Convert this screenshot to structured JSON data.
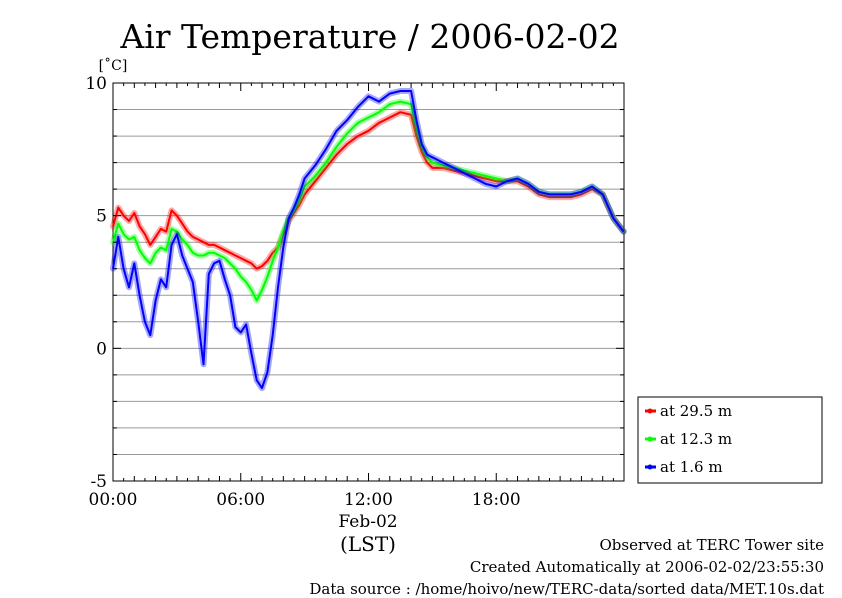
{
  "chart_data": {
    "type": "line",
    "title": "Air Temperature / 2006-02-02",
    "ylabel": "[˚C]",
    "xlabel": "(LST)",
    "x_date_label": "Feb-02",
    "xlim": [
      "00:00",
      "23:59"
    ],
    "ylim": [
      -5,
      10
    ],
    "x_ticks": [
      "00:00",
      "06:00",
      "12:00",
      "18:00"
    ],
    "y_ticks": [
      -5,
      0,
      5,
      10
    ],
    "grid": true,
    "legend_position": "right-bottom",
    "x": [
      "00:00",
      "00:15",
      "00:30",
      "00:45",
      "01:00",
      "01:15",
      "01:30",
      "01:45",
      "02:00",
      "02:15",
      "02:30",
      "02:45",
      "03:00",
      "03:15",
      "03:30",
      "03:45",
      "04:00",
      "04:15",
      "04:30",
      "04:45",
      "05:00",
      "05:15",
      "05:30",
      "05:45",
      "06:00",
      "06:15",
      "06:30",
      "06:45",
      "07:00",
      "07:15",
      "07:30",
      "07:45",
      "08:00",
      "08:15",
      "08:30",
      "08:45",
      "09:00",
      "09:30",
      "10:00",
      "10:30",
      "11:00",
      "11:30",
      "12:00",
      "12:30",
      "13:00",
      "13:30",
      "14:00",
      "14:15",
      "14:30",
      "14:45",
      "15:00",
      "15:30",
      "16:00",
      "16:30",
      "17:00",
      "17:30",
      "18:00",
      "18:30",
      "19:00",
      "19:30",
      "20:00",
      "20:30",
      "21:00",
      "21:30",
      "22:00",
      "22:30",
      "23:00",
      "23:30",
      "23:59"
    ],
    "series": [
      {
        "name": "at 29.5 m",
        "color": "#ff0000",
        "values": [
          4.6,
          5.3,
          5.0,
          4.8,
          5.1,
          4.6,
          4.3,
          3.9,
          4.2,
          4.5,
          4.4,
          5.2,
          5.0,
          4.7,
          4.4,
          4.2,
          4.1,
          4.0,
          3.9,
          3.9,
          3.8,
          3.7,
          3.6,
          3.5,
          3.4,
          3.3,
          3.2,
          3.0,
          3.1,
          3.3,
          3.6,
          3.8,
          4.3,
          4.8,
          5.1,
          5.4,
          5.8,
          6.3,
          6.8,
          7.3,
          7.7,
          8.0,
          8.2,
          8.5,
          8.7,
          8.9,
          8.8,
          8.0,
          7.4,
          7.0,
          6.8,
          6.8,
          6.7,
          6.6,
          6.5,
          6.4,
          6.3,
          6.3,
          6.3,
          6.1,
          5.8,
          5.7,
          5.7,
          5.7,
          5.8,
          6.0,
          5.8,
          4.9,
          4.4
        ]
      },
      {
        "name": "at 12.3 m",
        "color": "#00ff00",
        "values": [
          4.0,
          4.7,
          4.3,
          4.1,
          4.2,
          3.7,
          3.4,
          3.2,
          3.6,
          3.8,
          3.7,
          4.5,
          4.4,
          4.1,
          3.9,
          3.6,
          3.5,
          3.5,
          3.6,
          3.6,
          3.5,
          3.4,
          3.2,
          3.0,
          2.7,
          2.5,
          2.2,
          1.8,
          2.2,
          2.7,
          3.3,
          3.8,
          4.4,
          4.9,
          5.2,
          5.6,
          6.1,
          6.5,
          7.0,
          7.6,
          8.1,
          8.5,
          8.7,
          8.9,
          9.2,
          9.3,
          9.2,
          8.3,
          7.6,
          7.2,
          7.0,
          6.9,
          6.8,
          6.7,
          6.6,
          6.5,
          6.4,
          6.3,
          6.4,
          6.2,
          5.9,
          5.8,
          5.8,
          5.8,
          5.9,
          6.1,
          5.8,
          4.9,
          4.4
        ]
      },
      {
        "name": "at 1.6 m",
        "color": "#0000ff",
        "values": [
          3.0,
          4.2,
          3.0,
          2.3,
          3.2,
          2.0,
          1.0,
          0.5,
          1.8,
          2.6,
          2.3,
          3.9,
          4.3,
          3.5,
          3.0,
          2.5,
          1.0,
          -0.6,
          2.8,
          3.2,
          3.3,
          2.6,
          2.0,
          0.8,
          0.6,
          0.9,
          -0.2,
          -1.2,
          -1.5,
          -0.9,
          0.5,
          2.3,
          3.8,
          4.9,
          5.3,
          5.8,
          6.4,
          6.9,
          7.5,
          8.2,
          8.6,
          9.1,
          9.5,
          9.3,
          9.6,
          9.7,
          9.7,
          8.6,
          7.7,
          7.3,
          7.2,
          7.0,
          6.8,
          6.6,
          6.4,
          6.2,
          6.1,
          6.3,
          6.4,
          6.2,
          5.9,
          5.8,
          5.8,
          5.8,
          5.9,
          6.1,
          5.8,
          4.9,
          4.4
        ]
      }
    ]
  },
  "footer": {
    "observed": "Observed at TERC Tower site",
    "created": "Created Automatically at 2006-02-02/23:55:30",
    "source": "Data source : /home/hoivo/new/TERC-data/sorted  data/MET.10s.dat"
  }
}
